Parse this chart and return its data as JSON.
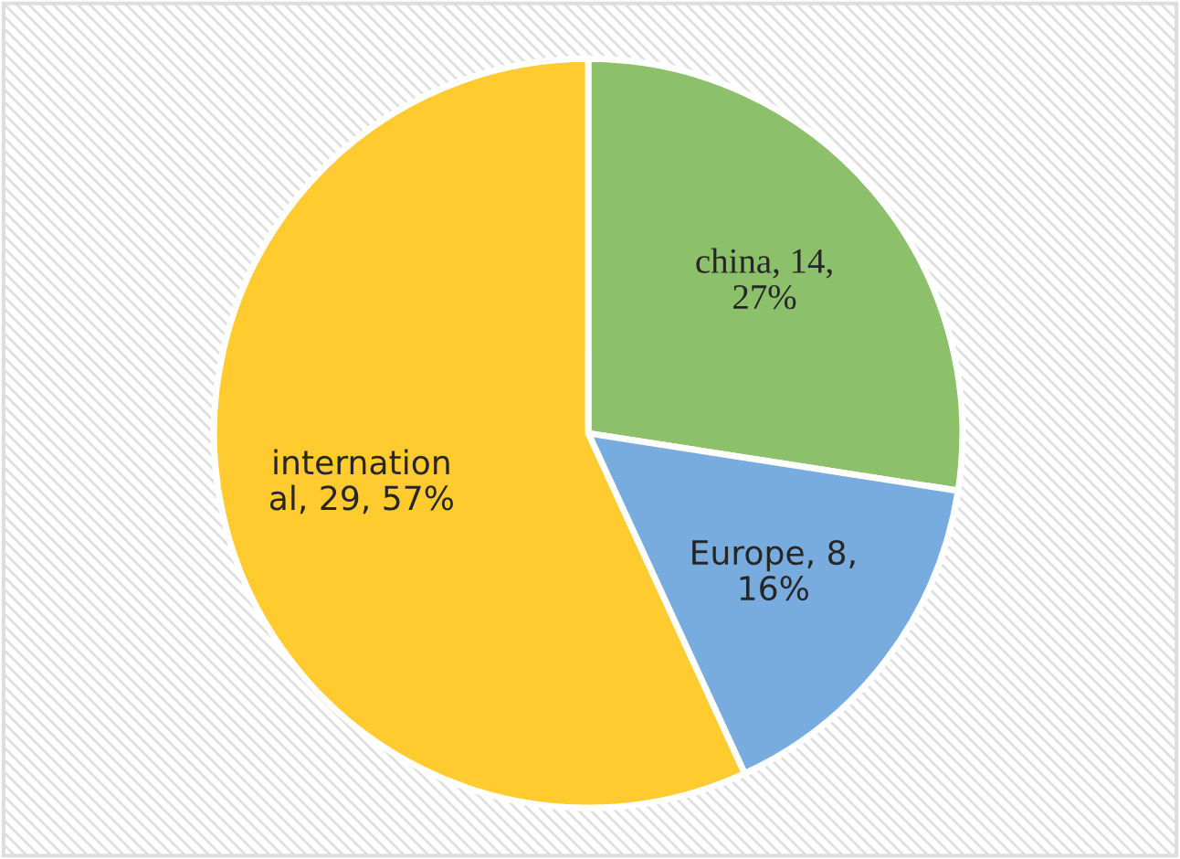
{
  "chart_data": {
    "type": "pie",
    "categories": [
      "china",
      "Europe",
      "internation\nal"
    ],
    "values": [
      14,
      8,
      29
    ],
    "colors": [
      "#8cc06a",
      "#78acdf",
      "#ffcb2f"
    ],
    "value_labels": [
      "14,\n27%",
      "8,\n16%",
      "29, 57%"
    ]
  }
}
